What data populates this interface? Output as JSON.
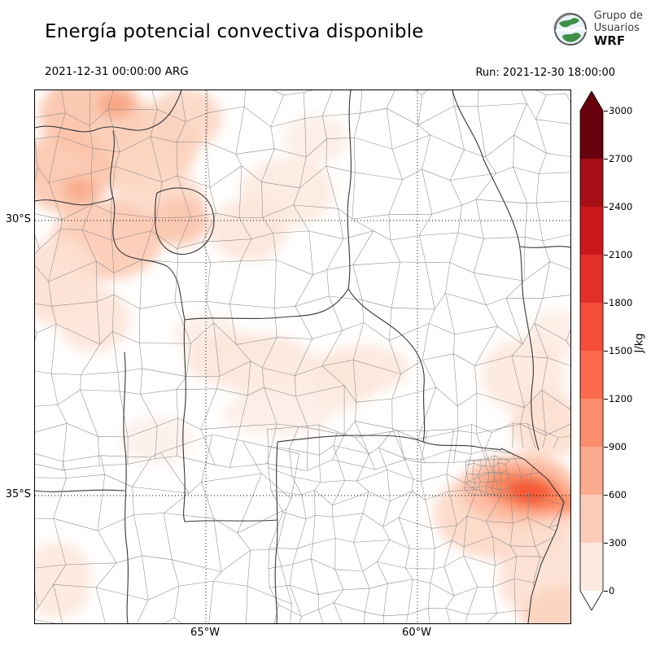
{
  "header": {
    "title": "Energía potencial convectiva disponible",
    "valid_time": "2021-12-31 00:00:00 ARG",
    "run_label": "Run: 2021-12-30 18:00:00",
    "logo": {
      "line1": "Grupo de",
      "line2": "Usuarios",
      "line3": "WRF"
    }
  },
  "map": {
    "y_ticks": [
      "30°S",
      "35°S"
    ],
    "x_ticks": [
      "65°W",
      "60°W"
    ]
  },
  "colorbar": {
    "unit": "J/kg",
    "tick_labels": [
      "3000",
      "2700",
      "2400",
      "2100",
      "1800",
      "1500",
      "1200",
      "900",
      "600",
      "300",
      "0"
    ],
    "band_colors_top_to_bottom": [
      "#67000d",
      "#a50f15",
      "#cb181d",
      "#e32f27",
      "#f44d38",
      "#fb6b4b",
      "#fc8d6d",
      "#fcab8f",
      "#fdccb8",
      "#feeae0"
    ],
    "over_color": "#67000d",
    "under_color": "#ffffff"
  }
}
